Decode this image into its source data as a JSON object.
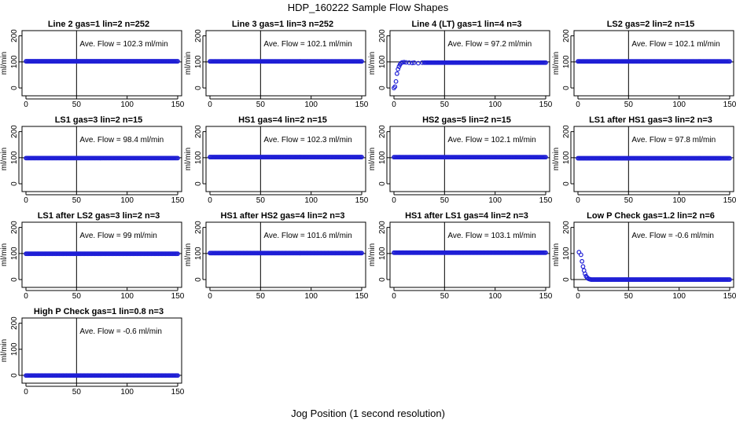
{
  "page_title": "HDP_160222  Sample Flow Shapes",
  "shared_xlabel": "Jog Position (1 second resolution)",
  "chart_data": [
    {
      "type": "scatter",
      "title": "Line 2 gas=1 lin=2 n=252",
      "ylabel": "ml/min",
      "xlim": [
        0,
        150
      ],
      "ylim": [
        -30,
        220
      ],
      "xticks": [
        0,
        50,
        100,
        150
      ],
      "yticks": [
        0,
        100,
        200
      ],
      "vline": 50,
      "hline": 100,
      "annotation": "Ave. Flow = 102.3  ml/min",
      "shape": "flat",
      "mean": 102.3
    },
    {
      "type": "scatter",
      "title": "Line 3 gas=1 lin=3 n=252",
      "ylabel": "ml/min",
      "xlim": [
        0,
        150
      ],
      "ylim": [
        -30,
        220
      ],
      "xticks": [
        0,
        50,
        100,
        150
      ],
      "yticks": [
        0,
        100,
        200
      ],
      "vline": 50,
      "hline": 100,
      "annotation": "Ave. Flow = 102.1  ml/min",
      "shape": "flat",
      "mean": 102.1
    },
    {
      "type": "scatter",
      "title": "Line 4 (LT) gas=1 lin=4 n=3",
      "ylabel": "ml/min",
      "xlim": [
        0,
        150
      ],
      "ylim": [
        -30,
        220
      ],
      "xticks": [
        0,
        50,
        100,
        150
      ],
      "yticks": [
        0,
        100,
        200
      ],
      "vline": 50,
      "hline": 100,
      "annotation": "Ave. Flow = 97.2  ml/min",
      "shape": "rise",
      "mean": 97.2
    },
    {
      "type": "scatter",
      "title": "LS2 gas=2 lin=2 n=15",
      "ylabel": "ml/min",
      "xlim": [
        0,
        150
      ],
      "ylim": [
        -30,
        220
      ],
      "xticks": [
        0,
        50,
        100,
        150
      ],
      "yticks": [
        0,
        100,
        200
      ],
      "vline": 50,
      "hline": 100,
      "annotation": "Ave. Flow = 102.1  ml/min",
      "shape": "flat",
      "mean": 102.1
    },
    {
      "type": "scatter",
      "title": "LS1 gas=3 lin=2 n=15",
      "ylabel": "ml/min",
      "xlim": [
        0,
        150
      ],
      "ylim": [
        -30,
        220
      ],
      "xticks": [
        0,
        50,
        100,
        150
      ],
      "yticks": [
        0,
        100,
        200
      ],
      "vline": 50,
      "hline": 100,
      "annotation": "Ave. Flow = 98.4  ml/min",
      "shape": "flat",
      "mean": 98.4
    },
    {
      "type": "scatter",
      "title": "HS1 gas=4 lin=2 n=15",
      "ylabel": "ml/min",
      "xlim": [
        0,
        150
      ],
      "ylim": [
        -30,
        220
      ],
      "xticks": [
        0,
        50,
        100,
        150
      ],
      "yticks": [
        0,
        100,
        200
      ],
      "vline": 50,
      "hline": 100,
      "annotation": "Ave. Flow = 102.3  ml/min",
      "shape": "flat",
      "mean": 102.3
    },
    {
      "type": "scatter",
      "title": "HS2 gas=5 lin=2 n=15",
      "ylabel": "ml/min",
      "xlim": [
        0,
        150
      ],
      "ylim": [
        -30,
        220
      ],
      "xticks": [
        0,
        50,
        100,
        150
      ],
      "yticks": [
        0,
        100,
        200
      ],
      "vline": 50,
      "hline": 100,
      "annotation": "Ave. Flow = 102.1  ml/min",
      "shape": "flat",
      "mean": 102.1
    },
    {
      "type": "scatter",
      "title": "LS1 after HS1 gas=3 lin=2 n=3",
      "ylabel": "ml/min",
      "xlim": [
        0,
        150
      ],
      "ylim": [
        -30,
        220
      ],
      "xticks": [
        0,
        50,
        100,
        150
      ],
      "yticks": [
        0,
        100,
        200
      ],
      "vline": 50,
      "hline": 100,
      "annotation": "Ave. Flow = 97.8  ml/min",
      "shape": "flat",
      "mean": 97.8
    },
    {
      "type": "scatter",
      "title": "LS1 after LS2 gas=3 lin=2 n=3",
      "ylabel": "ml/min",
      "xlim": [
        0,
        150
      ],
      "ylim": [
        -30,
        220
      ],
      "xticks": [
        0,
        50,
        100,
        150
      ],
      "yticks": [
        0,
        100,
        200
      ],
      "vline": 50,
      "hline": 100,
      "annotation": "Ave. Flow = 99  ml/min",
      "shape": "flat",
      "mean": 99
    },
    {
      "type": "scatter",
      "title": "HS1 after HS2 gas=4 lin=2 n=3",
      "ylabel": "ml/min",
      "xlim": [
        0,
        150
      ],
      "ylim": [
        -30,
        220
      ],
      "xticks": [
        0,
        50,
        100,
        150
      ],
      "yticks": [
        0,
        100,
        200
      ],
      "vline": 50,
      "hline": 100,
      "annotation": "Ave. Flow = 101.6  ml/min",
      "shape": "flat",
      "mean": 101.6
    },
    {
      "type": "scatter",
      "title": "HS1 after LS1 gas=4 lin=2 n=3",
      "ylabel": "ml/min",
      "xlim": [
        0,
        150
      ],
      "ylim": [
        -30,
        220
      ],
      "xticks": [
        0,
        50,
        100,
        150
      ],
      "yticks": [
        0,
        100,
        200
      ],
      "vline": 50,
      "hline": 100,
      "annotation": "Ave. Flow = 103.1  ml/min",
      "shape": "flat",
      "mean": 103.1
    },
    {
      "type": "scatter",
      "title": "Low P Check gas=1.2 lin=2 n=6",
      "ylabel": "ml/min",
      "xlim": [
        0,
        150
      ],
      "ylim": [
        -30,
        220
      ],
      "xticks": [
        0,
        50,
        100,
        150
      ],
      "yticks": [
        0,
        100,
        200
      ],
      "vline": 50,
      "hline": 0,
      "annotation": "Ave. Flow = -0.6  ml/min",
      "shape": "decay",
      "mean": -0.6
    },
    {
      "type": "scatter",
      "title": "High P Check gas=1 lin=0.8 n=3",
      "ylabel": "ml/min",
      "xlim": [
        0,
        150
      ],
      "ylim": [
        -30,
        220
      ],
      "xticks": [
        0,
        50,
        100,
        150
      ],
      "yticks": [
        0,
        100,
        200
      ],
      "vline": 50,
      "hline": 0,
      "annotation": "Ave. Flow = -0.6  ml/min",
      "shape": "flat",
      "mean": -0.6
    }
  ]
}
